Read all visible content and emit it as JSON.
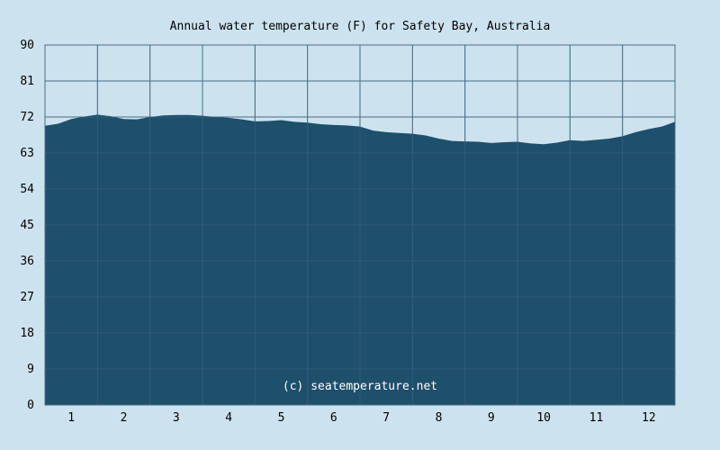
{
  "chart_data": {
    "type": "area",
    "title": "Annual water temperature (F) for Safety Bay, Australia",
    "watermark": "(c) seatemperature.net",
    "xlabel": "",
    "ylabel": "",
    "x_ticks": [
      "1",
      "2",
      "3",
      "4",
      "5",
      "6",
      "7",
      "8",
      "9",
      "10",
      "11",
      "12"
    ],
    "y_ticks": [
      "0",
      "9",
      "18",
      "27",
      "36",
      "45",
      "54",
      "63",
      "72",
      "81",
      "90"
    ],
    "ylim": [
      0,
      90
    ],
    "xlim": [
      0.5,
      12.5
    ],
    "grid": true,
    "x": [
      0.5,
      0.75,
      1.0,
      1.25,
      1.5,
      1.75,
      2.0,
      2.25,
      2.5,
      2.75,
      3.0,
      3.25,
      3.5,
      3.75,
      4.0,
      4.25,
      4.5,
      4.75,
      5.0,
      5.25,
      5.5,
      5.75,
      6.0,
      6.25,
      6.5,
      6.75,
      7.0,
      7.25,
      7.5,
      7.75,
      8.0,
      8.25,
      8.5,
      8.75,
      9.0,
      9.25,
      9.5,
      9.75,
      10.0,
      10.25,
      10.5,
      10.75,
      11.0,
      11.25,
      11.5,
      11.75,
      12.0,
      12.25,
      12.5
    ],
    "values": [
      69.8,
      70.3,
      71.5,
      72.1,
      72.6,
      72.2,
      71.5,
      71.4,
      72.0,
      72.4,
      72.5,
      72.5,
      72.3,
      72.0,
      71.8,
      71.4,
      70.9,
      71.0,
      71.2,
      70.8,
      70.6,
      70.2,
      70.0,
      69.9,
      69.6,
      68.6,
      68.2,
      68.0,
      67.8,
      67.4,
      66.6,
      66.0,
      65.9,
      65.8,
      65.5,
      65.7,
      65.8,
      65.4,
      65.2,
      65.6,
      66.2,
      66.0,
      66.3,
      66.6,
      67.2,
      68.2,
      69.0,
      69.6,
      70.8
    ],
    "colors": {
      "background": "#cce3ef",
      "area": "#1e4f6b",
      "grid": "#4a6c85"
    }
  }
}
